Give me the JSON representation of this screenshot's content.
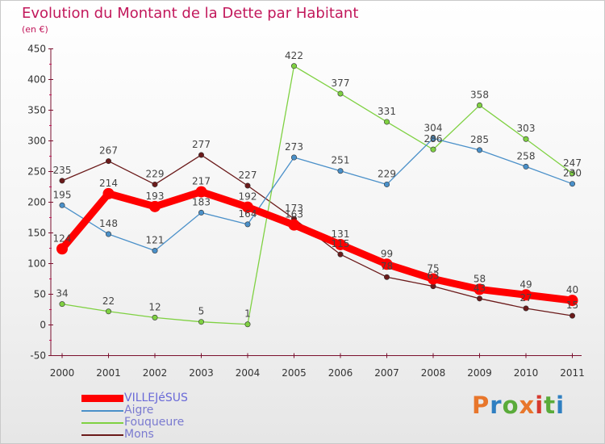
{
  "chart_data": {
    "type": "line",
    "title": "Evolution du Montant de la Dette par Habitant",
    "subtitle": "(en €)",
    "x": [
      "2000",
      "2001",
      "2002",
      "2003",
      "2004",
      "2005",
      "2006",
      "2007",
      "2008",
      "2009",
      "2010",
      "2011"
    ],
    "ylim": [
      -50,
      450
    ],
    "yticks": [
      -50,
      0,
      50,
      100,
      150,
      200,
      250,
      300,
      350,
      400,
      450
    ],
    "grid": false,
    "legend_position": "bottom-left",
    "series": [
      {
        "name": "VILLEJéSUS",
        "color": "#ff0000",
        "values": [
          124,
          214,
          193,
          217,
          192,
          163,
          131,
          99,
          75,
          58,
          49,
          40
        ],
        "labels": [
          "124",
          "214",
          "193",
          "217",
          "192",
          "163",
          "131",
          "99",
          "75",
          "58",
          "49",
          "40"
        ]
      },
      {
        "name": "Aigre",
        "color": "#4a90c9",
        "values": [
          195,
          148,
          121,
          183,
          164,
          273,
          251,
          229,
          304,
          285,
          258,
          230
        ],
        "labels": [
          "195",
          "148",
          "121",
          "183",
          "164",
          "273",
          "251",
          "229",
          "304",
          "285",
          "258",
          "230"
        ]
      },
      {
        "name": "Fouqueure",
        "color": "#7fd142",
        "values": [
          34,
          22,
          12,
          5,
          1,
          422,
          377,
          331,
          286,
          358,
          303,
          247
        ],
        "labels": [
          "34",
          "22",
          "12",
          "5",
          "1",
          "422",
          "377",
          "331",
          "286",
          "358",
          "303",
          "247"
        ]
      },
      {
        "name": "Mons",
        "color": "#6b1a1a",
        "values": [
          235,
          267,
          229,
          277,
          227,
          173,
          115,
          78,
          63,
          43,
          27,
          15
        ],
        "labels": [
          "235",
          "267",
          "229",
          "277",
          "227",
          "173",
          "115",
          "78",
          "63",
          "43",
          "27",
          "15"
        ]
      }
    ]
  },
  "brand": {
    "text": "Proxiti",
    "colors": [
      "#e8762b",
      "#2f7fc1",
      "#5aab3a",
      "#e8762b",
      "#d63a2f",
      "#5aab3a",
      "#2f7fc1"
    ]
  }
}
